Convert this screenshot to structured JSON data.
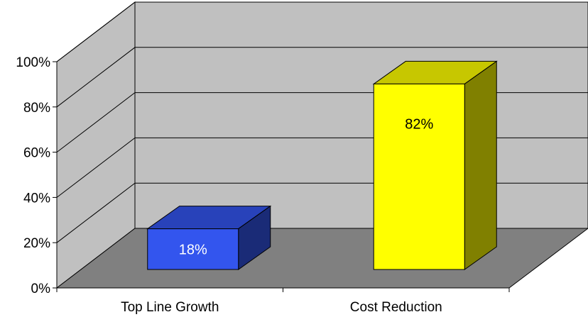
{
  "chart_data": {
    "type": "bar",
    "style": "3d-column",
    "categories": [
      "Top Line Growth",
      "Cost Reduction"
    ],
    "values": [
      18,
      82
    ],
    "data_labels": [
      "18%",
      "82%"
    ],
    "bar_colors": [
      "#3355ee",
      "#ffff00"
    ],
    "ylim": [
      0,
      100
    ],
    "y_ticks": [
      {
        "value": 0,
        "label": "0%"
      },
      {
        "value": 20,
        "label": "20%"
      },
      {
        "value": 40,
        "label": "40%"
      },
      {
        "value": 60,
        "label": "60%"
      },
      {
        "value": 80,
        "label": "80%"
      },
      {
        "value": 100,
        "label": "100%"
      }
    ],
    "grid": true,
    "legend": "none",
    "colors": {
      "back_wall": "#c0c0c0",
      "side_wall": "#c0c0c0",
      "floor": "#808080",
      "grid": "#000000"
    }
  }
}
